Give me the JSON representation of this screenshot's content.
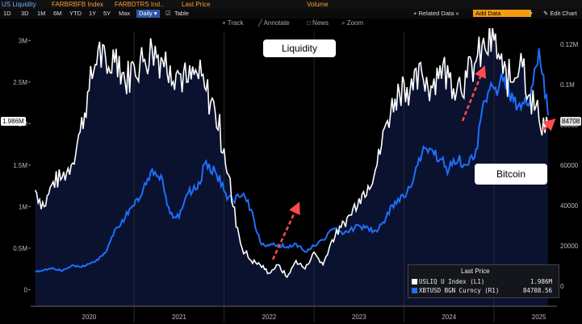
{
  "topbar": {
    "title": "US Liquidity",
    "series1": "FARBRBFB Index",
    "series2": "FARBDTRS Ind..",
    "field": "Last Price",
    "volume": "Volume"
  },
  "toolbar": {
    "ranges": [
      "1D",
      "3D",
      "1M",
      "6M",
      "YTD",
      "1Y",
      "5Y",
      "Max"
    ],
    "period": "Daily ▾",
    "table": "Table",
    "related": "+ Related Data »",
    "add_data": "Add Data",
    "edit_chart": "✎ Edit Chart"
  },
  "annotations": {
    "track": "+ Track",
    "annotate": "╱ Annotate",
    "news": "□ News",
    "zoom": "⌕ Zoom"
  },
  "labels": {
    "liquidity": "Liquidity",
    "bitcoin": "Bitcoin"
  },
  "current": {
    "left_value": "1.986M",
    "right_value": "84708"
  },
  "legend": {
    "header": "Last Price",
    "items": [
      {
        "name": "USLIQ U Index  (L1)",
        "value": "1.986M",
        "color": "#ffffff"
      },
      {
        "name": "XBTUSD BGN Curncy  (R1)",
        "value": "84708.56",
        "color": "#1e6fff"
      }
    ]
  },
  "colors": {
    "liquidity": "#ffffff",
    "bitcoin": "#1e6fff",
    "arrows": "#ff4b4b",
    "background": "#000000",
    "plot_fill": "#0a1230"
  },
  "chart_data": {
    "type": "line",
    "title": "US Liquidity",
    "x_ticks": [
      "2020",
      "2021",
      "2022",
      "2023",
      "2024",
      "2025"
    ],
    "left_axis": {
      "ticks": [
        "0",
        "0.5M",
        "1M",
        "1.5M",
        "2M",
        "2.5M",
        "3M"
      ],
      "range": [
        -200000,
        3100000
      ]
    },
    "right_axis": {
      "ticks": [
        "0",
        "20000",
        "40000",
        "60000",
        "80000",
        "0.1M",
        "0.12M"
      ],
      "range": [
        -10000,
        126000
      ]
    },
    "series": [
      {
        "name": "USLIQ U Index (L1)",
        "axis": "left",
        "x": [
          2019.9,
          2020.0,
          2020.1,
          2020.2,
          2020.3,
          2020.4,
          2020.5,
          2020.6,
          2020.7,
          2020.8,
          2020.9,
          2021.0,
          2021.1,
          2021.2,
          2021.3,
          2021.4,
          2021.5,
          2021.6,
          2021.7,
          2021.8,
          2021.9,
          2022.0,
          2022.1,
          2022.2,
          2022.3,
          2022.4,
          2022.5,
          2022.6,
          2022.7,
          2022.8,
          2022.9,
          2023.0,
          2023.1,
          2023.2,
          2023.3,
          2023.4,
          2023.5,
          2023.6,
          2023.7,
          2023.8,
          2023.9,
          2024.0,
          2024.1,
          2024.2,
          2024.3,
          2024.4,
          2024.5,
          2024.6,
          2024.7,
          2024.8,
          2024.9,
          2025.0,
          2025.1,
          2025.2,
          2025.3,
          2025.4,
          2025.5,
          2025.6
        ],
        "values": [
          1200000,
          1000000,
          1300000,
          1350000,
          1500000,
          1900000,
          2400000,
          2900000,
          2600000,
          2900000,
          2500000,
          2700000,
          2750000,
          2900000,
          2800000,
          2700000,
          2600000,
          2500000,
          2600000,
          2400000,
          2150000,
          1700000,
          1000000,
          500000,
          350000,
          300000,
          200000,
          300000,
          150000,
          350000,
          250000,
          450000,
          300000,
          600000,
          750000,
          900000,
          1100000,
          1250000,
          1500000,
          2000000,
          2300000,
          2500000,
          2400000,
          2600000,
          2450000,
          2700000,
          2550000,
          2500000,
          2550000,
          2750000,
          2900000,
          3000000,
          2600000,
          2500000,
          2850000,
          2350000,
          2050000,
          1986000
        ]
      },
      {
        "name": "XBTUSD BGN Curncy (R1)",
        "axis": "right",
        "x": [
          2019.9,
          2020.0,
          2020.1,
          2020.2,
          2020.3,
          2020.4,
          2020.5,
          2020.6,
          2020.7,
          2020.8,
          2020.9,
          2021.0,
          2021.1,
          2021.2,
          2021.3,
          2021.4,
          2021.5,
          2021.6,
          2021.7,
          2021.8,
          2021.9,
          2022.0,
          2022.1,
          2022.2,
          2022.3,
          2022.4,
          2022.5,
          2022.6,
          2022.7,
          2022.8,
          2022.9,
          2023.0,
          2023.1,
          2023.2,
          2023.3,
          2023.4,
          2023.5,
          2023.6,
          2023.7,
          2023.8,
          2023.9,
          2024.0,
          2024.1,
          2024.2,
          2024.3,
          2024.4,
          2024.5,
          2024.6,
          2024.7,
          2024.8,
          2024.9,
          2025.0,
          2025.1,
          2025.2,
          2025.3,
          2025.4,
          2025.5,
          2025.6
        ],
        "values": [
          7000,
          8000,
          9000,
          7500,
          10000,
          9500,
          11000,
          13000,
          18000,
          29000,
          34000,
          40000,
          48000,
          58000,
          55000,
          36000,
          34000,
          46000,
          48000,
          62000,
          57000,
          47000,
          42000,
          45000,
          38000,
          22000,
          20000,
          20500,
          19500,
          21000,
          17000,
          20000,
          23000,
          28000,
          27000,
          28000,
          30000,
          29000,
          27000,
          34000,
          42000,
          44000,
          52000,
          66000,
          68000,
          63000,
          58000,
          62000,
          60000,
          68000,
          92000,
          98000,
          102000,
          96000,
          88000,
          92000,
          118000,
          84708
        ]
      }
    ]
  }
}
